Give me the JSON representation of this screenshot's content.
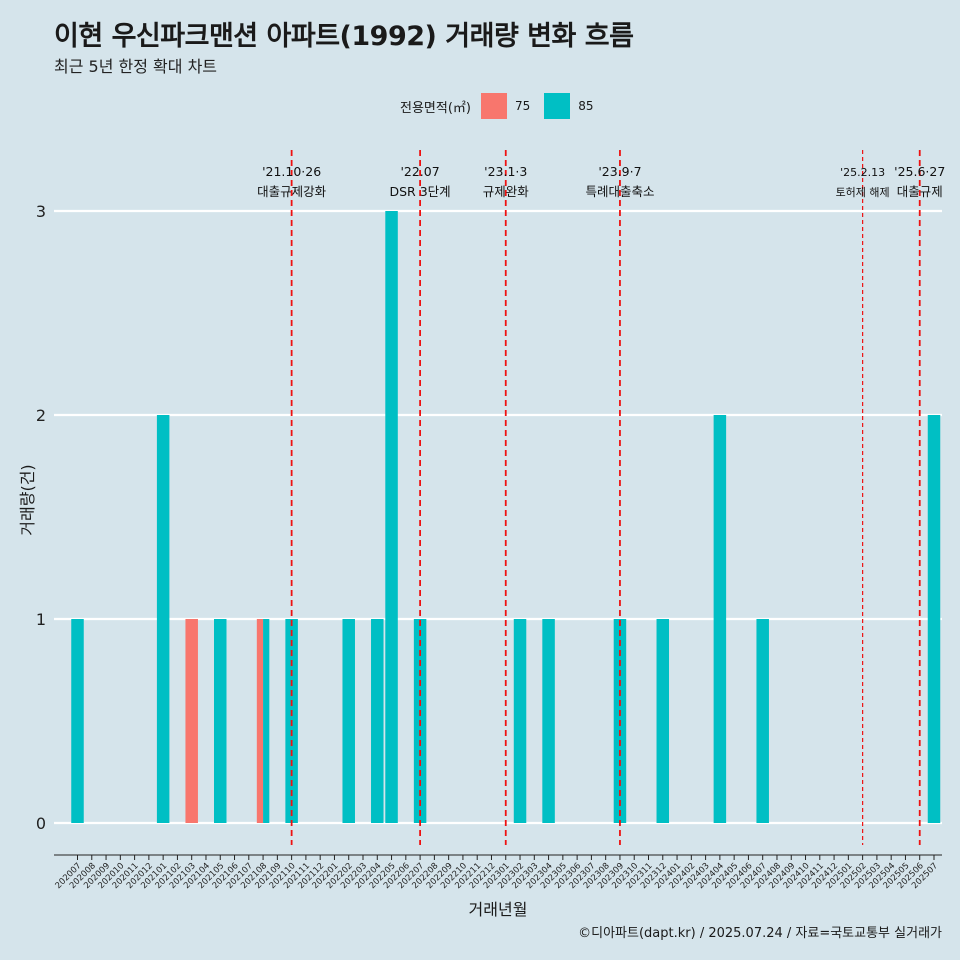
{
  "chart_data": {
    "type": "bar",
    "title": "이현 우신파크맨션 아파트(1992) 거래량 변화 흐름",
    "subtitle": "최근 5년 한정 확대 차트",
    "xlabel": "거래년월",
    "ylabel": "거래량(건)",
    "ylim": [
      0,
      3
    ],
    "yticks": [
      0,
      1,
      2,
      3
    ],
    "grid": "horizontal",
    "legend": {
      "title": "전용면적(㎡)",
      "position": "top",
      "entries": [
        {
          "name": "75",
          "color": "#f8766d"
        },
        {
          "name": "85",
          "color": "#00bfc4"
        }
      ]
    },
    "categories": [
      "202007",
      "202008",
      "202009",
      "202010",
      "202011",
      "202012",
      "202101",
      "202102",
      "202103",
      "202104",
      "202105",
      "202106",
      "202107",
      "202108",
      "202109",
      "202110",
      "202111",
      "202112",
      "202201",
      "202202",
      "202203",
      "202204",
      "202205",
      "202206",
      "202207",
      "202208",
      "202209",
      "202210",
      "202211",
      "202212",
      "202301",
      "202302",
      "202303",
      "202304",
      "202305",
      "202306",
      "202307",
      "202308",
      "202309",
      "202310",
      "202311",
      "202312",
      "202401",
      "202402",
      "202403",
      "202404",
      "202405",
      "202406",
      "202407",
      "202408",
      "202409",
      "202410",
      "202411",
      "202412",
      "202501",
      "202502",
      "202503",
      "202504",
      "202505",
      "202506",
      "202507"
    ],
    "series": [
      {
        "name": "75",
        "color": "#f8766d",
        "values": [
          0,
          0,
          0,
          0,
          0,
          0,
          0,
          0,
          1,
          0,
          0,
          0,
          0,
          1,
          0,
          0,
          0,
          0,
          0,
          0,
          0,
          0,
          0,
          0,
          0,
          0,
          0,
          0,
          0,
          0,
          0,
          0,
          0,
          0,
          0,
          0,
          0,
          0,
          0,
          0,
          0,
          0,
          0,
          0,
          0,
          0,
          0,
          0,
          0,
          0,
          0,
          0,
          0,
          0,
          0,
          0,
          0,
          0,
          0,
          0,
          0
        ]
      },
      {
        "name": "85",
        "color": "#00bfc4",
        "values": [
          1,
          0,
          0,
          0,
          0,
          0,
          2,
          0,
          0,
          0,
          1,
          0,
          0,
          1,
          0,
          1,
          0,
          0,
          0,
          1,
          0,
          1,
          3,
          0,
          1,
          0,
          0,
          0,
          0,
          0,
          0,
          1,
          0,
          1,
          0,
          0,
          0,
          0,
          1,
          0,
          0,
          1,
          0,
          0,
          0,
          2,
          0,
          0,
          1,
          0,
          0,
          0,
          0,
          0,
          0,
          0,
          0,
          0,
          0,
          0,
          2
        ]
      }
    ],
    "annotations": [
      {
        "x": "202110",
        "date": "'21.10·26",
        "text": "대출규제강화",
        "style": "dashed"
      },
      {
        "x": "202207",
        "date": "'22.07",
        "text": "DSR 3단계",
        "style": "dashed"
      },
      {
        "x": "202301",
        "date": "'23.1·3",
        "text": "규제완화",
        "style": "dashed"
      },
      {
        "x": "202309",
        "date": "'23.9·7",
        "text": "특례대출축소",
        "style": "dashed"
      },
      {
        "x": "202502",
        "date": "'25.2.13",
        "text": "토허제 해제",
        "style": "thin-dashed"
      },
      {
        "x": "202506",
        "date": "'25.6·27",
        "text": "대출규제",
        "style": "dashed"
      }
    ]
  },
  "caption": "©디아파트(dapt.kr) / 2025.07.24 / 자료=국토교통부 실거래가"
}
